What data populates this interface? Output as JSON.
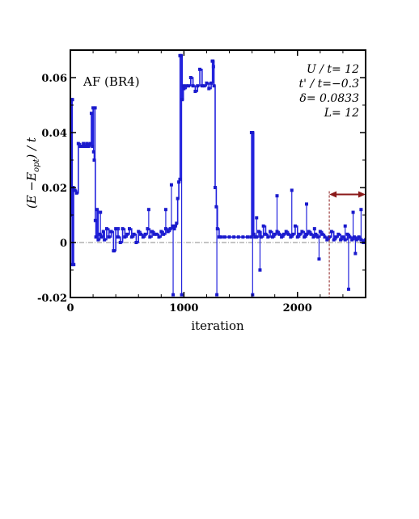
{
  "chart_data": {
    "type": "line",
    "title": "",
    "panel_label": "AF (BR4)",
    "xlabel": "iteration",
    "ylabel": "(E −E_opt) / t",
    "ylabel_parts": {
      "open": "(E −E",
      "sub": "opt",
      "close": ") / t"
    },
    "xlim": [
      0,
      2600
    ],
    "ylim": [
      -0.02,
      0.07
    ],
    "x_ticks": [
      0,
      1000,
      2000
    ],
    "y_ticks": [
      -0.02,
      0,
      0.02,
      0.04,
      0.06
    ],
    "x_tick_labels": [
      "0",
      "1000",
      "2000"
    ],
    "y_tick_labels": [
      "-0.02",
      "0",
      "0.02",
      "0.04",
      "0.06"
    ],
    "grid": false,
    "reference_line_y": 0,
    "annotations": [
      "U / t= 12",
      "t' / t=−0.3",
      "δ= 0.0833",
      "L= 12"
    ],
    "highlight_range": {
      "x": [
        2280,
        2600
      ],
      "y": 0.0175
    },
    "colors": {
      "series": "#2222dd",
      "marker": "#1a1acc",
      "reference": "#888888",
      "arrow": "#8b1a1a"
    },
    "series": [
      {
        "x": [
          0,
          10,
          15,
          25,
          30,
          40,
          55,
          70,
          90,
          100,
          115,
          125,
          135,
          145,
          160,
          175,
          185,
          195,
          200,
          205,
          210,
          220,
          225,
          235,
          245,
          260,
          275,
          290,
          300,
          320,
          340,
          360,
          380,
          400,
          420,
          440,
          460,
          480,
          500,
          520,
          540,
          560,
          580,
          600,
          620,
          640,
          660,
          680,
          700,
          720,
          740,
          760,
          780,
          800,
          820,
          840,
          860,
          880,
          900,
          915,
          925,
          935,
          945,
          955,
          965,
          975,
          985,
          995,
          1000,
          1020,
          1040,
          1060,
          1080,
          1100,
          1120,
          1140,
          1160,
          1180,
          1200,
          1220,
          1240,
          1255,
          1265,
          1275,
          1285,
          1295,
          1310,
          1330,
          1360,
          1400,
          1440,
          1480,
          1520,
          1560,
          1590,
          1605,
          1615,
          1625,
          1640,
          1660,
          1680,
          1700,
          1720,
          1740,
          1760,
          1780,
          1800,
          1820,
          1840,
          1860,
          1880,
          1900,
          1920,
          1940,
          1960,
          1980,
          2000,
          2020,
          2040,
          2060,
          2080,
          2100,
          2120,
          2140,
          2160,
          2180,
          2200,
          2220,
          2240,
          2260,
          2280,
          2300,
          2320,
          2340,
          2360,
          2380,
          2400,
          2420,
          2440,
          2460,
          2480,
          2500,
          2520,
          2540,
          2560,
          2580,
          2600
        ],
        "y": [
          0.01,
          0.052,
          -0.008,
          0.02,
          0.019,
          0.019,
          0.018,
          0.036,
          0.035,
          0.035,
          0.036,
          0.035,
          0.035,
          0.036,
          0.035,
          0.036,
          0.047,
          0.035,
          0.049,
          0.033,
          0.03,
          0.008,
          0.002,
          0.012,
          0.001,
          0.003,
          0.002,
          0.004,
          0.001,
          0.005,
          0.002,
          0.004,
          -0.003,
          0.005,
          0.002,
          0.0,
          0.005,
          0.002,
          0.003,
          0.005,
          0.002,
          0.003,
          0.0,
          0.004,
          0.003,
          0.002,
          0.003,
          0.005,
          0.002,
          0.004,
          0.003,
          0.003,
          0.002,
          0.004,
          0.003,
          0.005,
          0.004,
          0.005,
          0.006,
          0.005,
          0.006,
          0.007,
          0.016,
          0.022,
          0.023,
          0.068,
          0.052,
          0.057,
          0.056,
          0.057,
          0.057,
          0.06,
          0.057,
          0.055,
          0.057,
          0.063,
          0.057,
          0.057,
          0.058,
          0.056,
          0.058,
          0.066,
          0.057,
          0.02,
          0.013,
          0.005,
          0.002,
          0.002,
          0.002,
          0.002,
          0.002,
          0.002,
          0.002,
          0.002,
          0.002,
          0.04,
          0.003,
          0.002,
          0.002,
          0.004,
          0.002,
          0.006,
          0.003,
          0.002,
          0.004,
          0.002,
          0.003,
          0.004,
          0.003,
          0.002,
          0.003,
          0.004,
          0.003,
          0.002,
          0.003,
          0.006,
          0.002,
          0.003,
          0.004,
          0.002,
          0.003,
          0.004,
          0.003,
          0.002,
          0.003,
          0.002,
          0.004,
          0.003,
          0.002,
          0.001,
          0.002,
          0.004,
          0.001,
          0.002,
          0.003,
          0.001,
          0.002,
          0.001,
          0.003,
          0.002,
          0.001,
          0.002,
          0.001,
          0.002,
          0.001,
          0.0,
          0.001
        ],
        "spikes": [
          {
            "x": 18,
            "y": 0.052
          },
          {
            "x": 30,
            "y": -0.008
          },
          {
            "x": 218,
            "y": 0.049
          },
          {
            "x": 265,
            "y": 0.011
          },
          {
            "x": 385,
            "y": -0.003
          },
          {
            "x": 420,
            "y": 0.005
          },
          {
            "x": 690,
            "y": 0.012
          },
          {
            "x": 840,
            "y": 0.012
          },
          {
            "x": 890,
            "y": 0.021
          },
          {
            "x": 905,
            "y": -0.019
          },
          {
            "x": 965,
            "y": 0.068
          },
          {
            "x": 980,
            "y": -0.019
          },
          {
            "x": 1250,
            "y": 0.066
          },
          {
            "x": 1260,
            "y": 0.064
          },
          {
            "x": 1290,
            "y": -0.019
          },
          {
            "x": 1595,
            "y": 0.04
          },
          {
            "x": 1605,
            "y": -0.019
          },
          {
            "x": 1640,
            "y": 0.009
          },
          {
            "x": 1670,
            "y": -0.01
          },
          {
            "x": 1820,
            "y": 0.017
          },
          {
            "x": 1950,
            "y": 0.019
          },
          {
            "x": 2080,
            "y": 0.014
          },
          {
            "x": 2150,
            "y": 0.005
          },
          {
            "x": 2190,
            "y": -0.006
          },
          {
            "x": 2420,
            "y": 0.006
          },
          {
            "x": 2450,
            "y": -0.017
          },
          {
            "x": 2490,
            "y": 0.011
          },
          {
            "x": 2510,
            "y": -0.004
          },
          {
            "x": 2560,
            "y": 0.012
          }
        ]
      }
    ]
  }
}
